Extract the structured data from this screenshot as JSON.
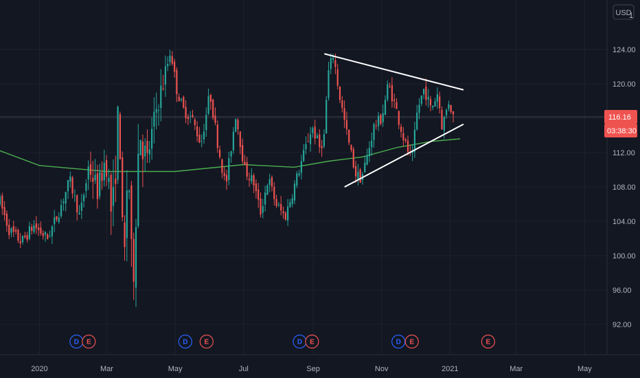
{
  "currency_label": "USD",
  "colors": {
    "background": "#131722",
    "grid": "#1e222d",
    "text": "#b2b5be",
    "up": "#26a69a",
    "down": "#ef5350",
    "moving_average": "#4caf50",
    "trendline": "#ffffff",
    "dividend_badge": "#2962ff",
    "earnings_badge": "#ef5350"
  },
  "chart_data": {
    "type": "candlestick",
    "title": "",
    "xlabel": "",
    "ylabel": "",
    "grid": true,
    "ylim": [
      88.5,
      130.5
    ],
    "y_ticks": [
      "92.00",
      "96.00",
      "100.00",
      "104.00",
      "108.00",
      "112.00",
      "116.00",
      "120.00",
      "124.00"
    ],
    "x_ticks": [
      "2020",
      "Mar",
      "May",
      "Jul",
      "Sep",
      "Nov",
      "2021",
      "Mar",
      "May"
    ],
    "x_tick_dates": [
      "2020-01-01",
      "2020-03-01",
      "2020-05-01",
      "2020-07-01",
      "2020-09-01",
      "2020-11-01",
      "2021-01-01",
      "2021-03-01",
      "2021-05-01"
    ],
    "x_range": [
      "2019-11-25",
      "2021-06-01"
    ],
    "last_price": "116.16",
    "countdown": "03:38:30",
    "price_series": [
      [
        "2019-11-25",
        107.0
      ],
      [
        "2019-12-05",
        103.0
      ],
      [
        "2019-12-16",
        101.6
      ],
      [
        "2019-12-27",
        103.5
      ],
      [
        "2020-01-08",
        102.0
      ],
      [
        "2020-01-18",
        105.0
      ],
      [
        "2020-01-28",
        108.8
      ],
      [
        "2020-02-06",
        104.5
      ],
      [
        "2020-02-14",
        110.5
      ],
      [
        "2020-02-22",
        107.5
      ],
      [
        "2020-02-29",
        111.5
      ],
      [
        "2020-03-06",
        104.0
      ],
      [
        "2020-03-12",
        118.0
      ],
      [
        "2020-03-16",
        96.5
      ],
      [
        "2020-03-20",
        112.0
      ],
      [
        "2020-03-24",
        95.5
      ],
      [
        "2020-03-30",
        115.0
      ],
      [
        "2020-04-06",
        111.0
      ],
      [
        "2020-04-14",
        117.0
      ],
      [
        "2020-04-22",
        121.0
      ],
      [
        "2020-04-27",
        124.0
      ],
      [
        "2020-05-02",
        119.5
      ],
      [
        "2020-05-08",
        117.0
      ],
      [
        "2020-05-16",
        116.0
      ],
      [
        "2020-05-24",
        113.0
      ],
      [
        "2020-06-01",
        119.0
      ],
      [
        "2020-06-08",
        113.0
      ],
      [
        "2020-06-15",
        108.0
      ],
      [
        "2020-06-24",
        116.5
      ],
      [
        "2020-07-02",
        110.0
      ],
      [
        "2020-07-10",
        108.5
      ],
      [
        "2020-07-16",
        105.0
      ],
      [
        "2020-07-23",
        109.0
      ],
      [
        "2020-07-30",
        106.0
      ],
      [
        "2020-08-07",
        104.5
      ],
      [
        "2020-08-15",
        108.0
      ],
      [
        "2020-08-24",
        112.0
      ],
      [
        "2020-08-31",
        115.0
      ],
      [
        "2020-09-07",
        112.5
      ],
      [
        "2020-09-11",
        114.0
      ],
      [
        "2020-09-14",
        121.0
      ],
      [
        "2020-09-19",
        123.5
      ],
      [
        "2020-09-24",
        119.0
      ],
      [
        "2020-10-02",
        113.5
      ],
      [
        "2020-10-09",
        109.5
      ],
      [
        "2020-10-14",
        109.0
      ],
      [
        "2020-10-20",
        112.0
      ],
      [
        "2020-10-25",
        115.0
      ],
      [
        "2020-11-01",
        116.0
      ],
      [
        "2020-11-07",
        120.0
      ],
      [
        "2020-11-13",
        117.5
      ],
      [
        "2020-11-18",
        115.0
      ],
      [
        "2020-11-22",
        113.0
      ],
      [
        "2020-11-28",
        111.0
      ],
      [
        "2020-12-03",
        117.0
      ],
      [
        "2020-12-09",
        119.5
      ],
      [
        "2020-12-15",
        117.0
      ],
      [
        "2020-12-21",
        119.0
      ],
      [
        "2020-12-25",
        115.0
      ],
      [
        "2020-12-31",
        118.0
      ],
      [
        "2021-01-04",
        116.16
      ]
    ],
    "moving_average": [
      [
        "2019-11-25",
        112.3
      ],
      [
        "2020-01-01",
        110.5
      ],
      [
        "2020-03-01",
        109.8
      ],
      [
        "2020-05-01",
        109.8
      ],
      [
        "2020-07-01",
        110.6
      ],
      [
        "2020-08-15",
        110.3
      ],
      [
        "2020-09-15",
        111.0
      ],
      [
        "2020-10-15",
        111.5
      ],
      [
        "2020-11-15",
        112.6
      ],
      [
        "2020-12-15",
        113.3
      ],
      [
        "2021-01-10",
        113.6
      ]
    ],
    "trendlines": [
      {
        "name": "upper",
        "from": [
          "2020-09-11",
          123.5
        ],
        "to": [
          "2021-01-13",
          119.3
        ]
      },
      {
        "name": "lower",
        "from": [
          "2020-09-29",
          108.0
        ],
        "to": [
          "2021-01-13",
          115.3
        ]
      }
    ],
    "events": [
      {
        "type": "D",
        "date": "2020-02-03"
      },
      {
        "type": "E",
        "date": "2020-02-14"
      },
      {
        "type": "D",
        "date": "2020-05-10"
      },
      {
        "type": "E",
        "date": "2020-05-29"
      },
      {
        "type": "D",
        "date": "2020-08-20"
      },
      {
        "type": "E",
        "date": "2020-08-31"
      },
      {
        "type": "D",
        "date": "2020-11-16"
      },
      {
        "type": "E",
        "date": "2020-11-28"
      },
      {
        "type": "E",
        "date": "2021-02-04"
      }
    ]
  }
}
